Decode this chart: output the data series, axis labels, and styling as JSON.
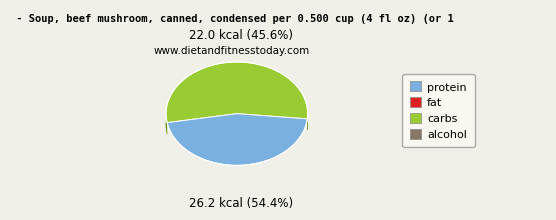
{
  "title": " - Soup, beef mushroom, canned, condensed per 0.500 cup (4 fl oz) (or 1",
  "subtitle": "www.dietandfitnesstoday.com",
  "protein_kcal": 22.0,
  "protein_pct": 45.6,
  "carbs_kcal": 26.2,
  "carbs_pct": 54.4,
  "protein_color": "#7ab0e0",
  "carbs_color": "#99cc33",
  "carbs_dark_color": "#5a8a00",
  "legend_colors": [
    "#7ab0e0",
    "#dd2222",
    "#99cc33",
    "#887766"
  ],
  "legend_labels": [
    "protein",
    "fat",
    "carbs",
    "alcohol"
  ],
  "background_color": "#f0f0e8",
  "title_fontsize": 7.5,
  "subtitle_fontsize": 7.5,
  "label_fontsize": 8.5
}
